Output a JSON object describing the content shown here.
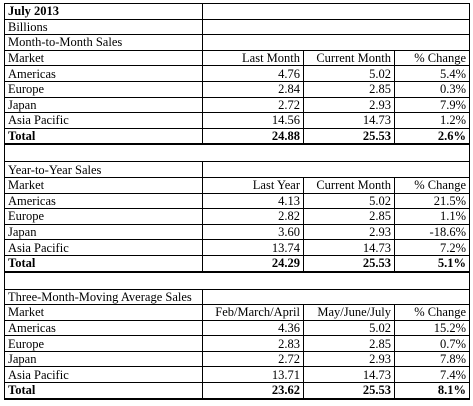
{
  "title": "July 2013",
  "unit": "Billions",
  "sections": [
    {
      "name": "Month-to-Month Sales",
      "headers": [
        "Market",
        "Last Month",
        "Current Month",
        "% Change"
      ],
      "rows": [
        [
          "Americas",
          "4.76",
          "5.02",
          "5.4%"
        ],
        [
          "Europe",
          "2.84",
          "2.85",
          "0.3%"
        ],
        [
          "Japan",
          "2.72",
          "2.93",
          "7.9%"
        ],
        [
          "Asia Pacific",
          "14.56",
          "14.73",
          "1.2%"
        ]
      ],
      "total": [
        "Total",
        "24.88",
        "25.53",
        "2.6%"
      ]
    },
    {
      "name": "Year-to-Year Sales",
      "headers": [
        "Market",
        "Last Year",
        "Current Month",
        "% Change"
      ],
      "rows": [
        [
          "Americas",
          "4.13",
          "5.02",
          "21.5%"
        ],
        [
          "Europe",
          "2.82",
          "2.85",
          "1.1%"
        ],
        [
          "Japan",
          "3.60",
          "2.93",
          "-18.6%"
        ],
        [
          "Asia Pacific",
          "13.74",
          "14.73",
          "7.2%"
        ]
      ],
      "total": [
        "Total",
        "24.29",
        "25.53",
        "5.1%"
      ]
    },
    {
      "name": "Three-Month-Moving Average Sales",
      "headers": [
        "Market",
        "Feb/March/April",
        "May/June/July",
        "% Change"
      ],
      "rows": [
        [
          "Americas",
          "4.36",
          "5.02",
          "15.2%"
        ],
        [
          "Europe",
          "2.83",
          "2.85",
          "0.7%"
        ],
        [
          "Japan",
          "2.72",
          "2.93",
          "7.8%"
        ],
        [
          "Asia Pacific",
          "13.71",
          "14.73",
          "7.4%"
        ]
      ],
      "total": [
        "Total",
        "23.62",
        "25.53",
        "8.1%"
      ]
    }
  ]
}
